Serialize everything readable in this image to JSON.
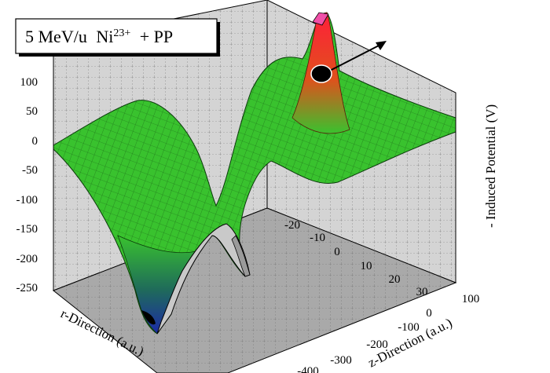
{
  "chart_data": {
    "type": "surface-3d",
    "title": {
      "energy": "5 MeV/u",
      "ion": "Ni",
      "charge": "23+",
      "target": "+ PP"
    },
    "zlabel": "- Induced Potential (V)",
    "xlabel": "r-Direction (a.u.)",
    "ylabel": "z-Direction (a.u.)",
    "zlim": [
      -250,
      150
    ],
    "z_ticks": [
      "100",
      "50",
      "0",
      "-50",
      "-100",
      "-150",
      "-200",
      "-250"
    ],
    "r_ticks": [
      "-20",
      "-10",
      "0",
      "10",
      "20",
      "30"
    ],
    "z_dir_ticks": [
      "100",
      "0",
      "-100",
      "-200",
      "-300",
      "-400"
    ],
    "grid": true,
    "surface_features": {
      "peak_potential": 140,
      "deep_well_min": -250,
      "secondary_well_min": -170,
      "plateau_level": 20
    },
    "colors": {
      "surface_green": "#39c22e",
      "peak_red": "#ff1f3a",
      "well_blue": "#1c2aa6",
      "floor_gray": "#a9a9a9",
      "wall_gray": "#c9c9c9",
      "marker_black": "#000000"
    }
  }
}
